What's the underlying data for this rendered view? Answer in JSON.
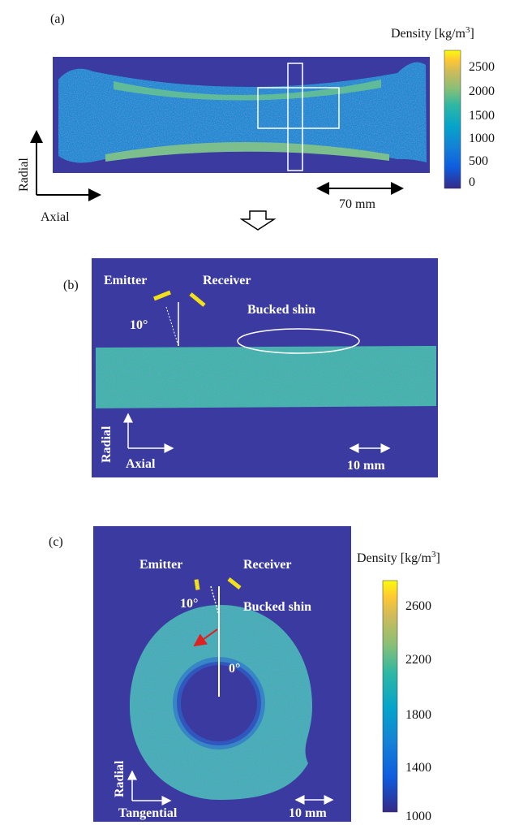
{
  "panels": [
    {
      "label": "(a)",
      "colorbar": {
        "title": {
          "text": "Density [kg/m",
          "superscript": "3",
          "close": "]"
        },
        "ticks": [
          "2500",
          "2000",
          "1500",
          "1000",
          "500",
          "0"
        ]
      },
      "axes": {
        "vertical": "Radial",
        "horizontal": "Axial"
      },
      "scale": "70 mm"
    },
    {
      "label": "(b)",
      "emitter": "Emitter",
      "receiver": "Receiver",
      "angle": "10°",
      "annotation": "Bucked shin",
      "axes": {
        "vertical": "Radial",
        "horizontal": "Axial"
      },
      "scale": "10 mm"
    },
    {
      "label": "(c)",
      "emitter": "Emitter",
      "receiver": "Receiver",
      "angle": "10°",
      "annotation": "Bucked shin",
      "zero": "0°",
      "colorbar": {
        "title": {
          "text": "Density [kg/m",
          "superscript": "3",
          "close": "]"
        },
        "ticks": [
          "2600",
          "2200",
          "1800",
          "1400",
          "1000"
        ]
      },
      "axes": {
        "vertical": "Radial",
        "horizontal": "Tangential"
      },
      "scale": "10 mm"
    }
  ]
}
